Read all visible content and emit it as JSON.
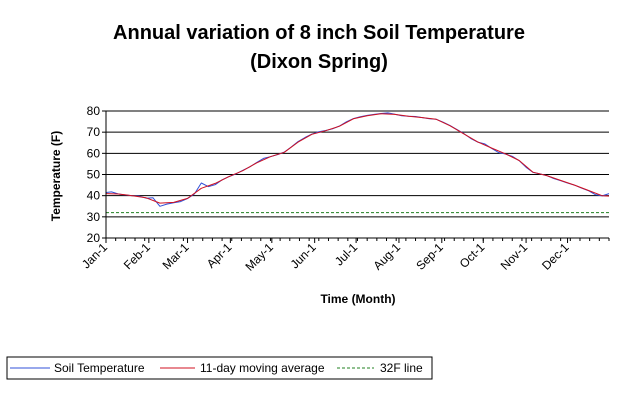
{
  "chart_data": {
    "type": "line",
    "title": "Annual variation of 8 inch Soil Temperature",
    "subtitle": "(Dixon Spring)",
    "xlabel": "Time (Month)",
    "ylabel": "Temperature (F)",
    "ylim": [
      20,
      80
    ],
    "yticks": [
      20,
      30,
      40,
      50,
      60,
      70,
      80
    ],
    "grid": "horizontal",
    "legend_position": "bottom",
    "x_unit": "day of year",
    "xlim": [
      1,
      365
    ],
    "categories": [
      "Jan-1",
      "Feb-1",
      "Mar-1",
      "Apr-1",
      "May-1",
      "Jun-1",
      "Jul-1",
      "Aug-1",
      "Sep-1",
      "Oct-1",
      "Nov-1",
      "Dec-1"
    ],
    "category_days": [
      1,
      32,
      60,
      91,
      121,
      152,
      182,
      213,
      244,
      274,
      305,
      335
    ],
    "colors": {
      "soil": "#3050d8",
      "avg": "#d01020",
      "line32": "#208020"
    },
    "series": [
      {
        "name": "Soil Temperature",
        "style": "solid",
        "x": [
          1,
          5,
          10,
          15,
          20,
          25,
          30,
          35,
          40,
          45,
          50,
          55,
          60,
          65,
          70,
          75,
          80,
          85,
          90,
          95,
          100,
          105,
          110,
          115,
          120,
          125,
          130,
          135,
          140,
          145,
          150,
          155,
          160,
          165,
          170,
          175,
          180,
          185,
          190,
          195,
          200,
          205,
          210,
          215,
          220,
          225,
          230,
          235,
          240,
          245,
          250,
          255,
          260,
          265,
          270,
          275,
          280,
          285,
          290,
          295,
          300,
          305,
          310,
          315,
          320,
          325,
          330,
          335,
          340,
          345,
          350,
          355,
          360,
          365
        ],
        "values": [
          41.5,
          41.8,
          40.8,
          40.3,
          40,
          39.8,
          38.8,
          39,
          35,
          36,
          36.7,
          37.2,
          38.6,
          40.8,
          46,
          44.3,
          45.2,
          47.5,
          49,
          50.3,
          52,
          53.6,
          55.6,
          57.6,
          58.4,
          59.4,
          60.6,
          63,
          65.6,
          67.5,
          69.1,
          70.2,
          70.8,
          71.6,
          72.9,
          74.9,
          76.4,
          77.3,
          77.9,
          78.4,
          78.8,
          79.1,
          78.5,
          77.8,
          77.5,
          77.4,
          76.9,
          76.3,
          76.1,
          74.7,
          73.1,
          71.2,
          69.3,
          67,
          65.3,
          64.5,
          62.4,
          60.4,
          59.7,
          58.6,
          56.5,
          53.4,
          51,
          50.3,
          49.5,
          48.1,
          47.1,
          46,
          45,
          43.6,
          42.4,
          40.5,
          39.9,
          41
        ]
      },
      {
        "name": "11-day moving average",
        "style": "solid",
        "x": [
          1,
          10,
          20,
          30,
          40,
          50,
          60,
          70,
          80,
          90,
          100,
          110,
          120,
          130,
          140,
          150,
          160,
          170,
          180,
          190,
          200,
          210,
          220,
          230,
          240,
          250,
          260,
          270,
          280,
          290,
          300,
          310,
          320,
          330,
          340,
          350,
          360,
          365
        ],
        "values": [
          41,
          40.8,
          40,
          39,
          36.5,
          36.8,
          38.7,
          43.5,
          45.8,
          49,
          51.8,
          55.5,
          58.4,
          60.5,
          65.3,
          69,
          70.7,
          72.8,
          76.3,
          77.8,
          78.7,
          78.4,
          77.5,
          76.9,
          76.1,
          73,
          69.2,
          65.4,
          62.5,
          59.8,
          56.6,
          51.1,
          49.5,
          47.2,
          45,
          42.5,
          40,
          39.8
        ]
      },
      {
        "name": "32F line",
        "style": "dashed",
        "x": [
          1,
          365
        ],
        "values": [
          32,
          32
        ]
      }
    ]
  }
}
